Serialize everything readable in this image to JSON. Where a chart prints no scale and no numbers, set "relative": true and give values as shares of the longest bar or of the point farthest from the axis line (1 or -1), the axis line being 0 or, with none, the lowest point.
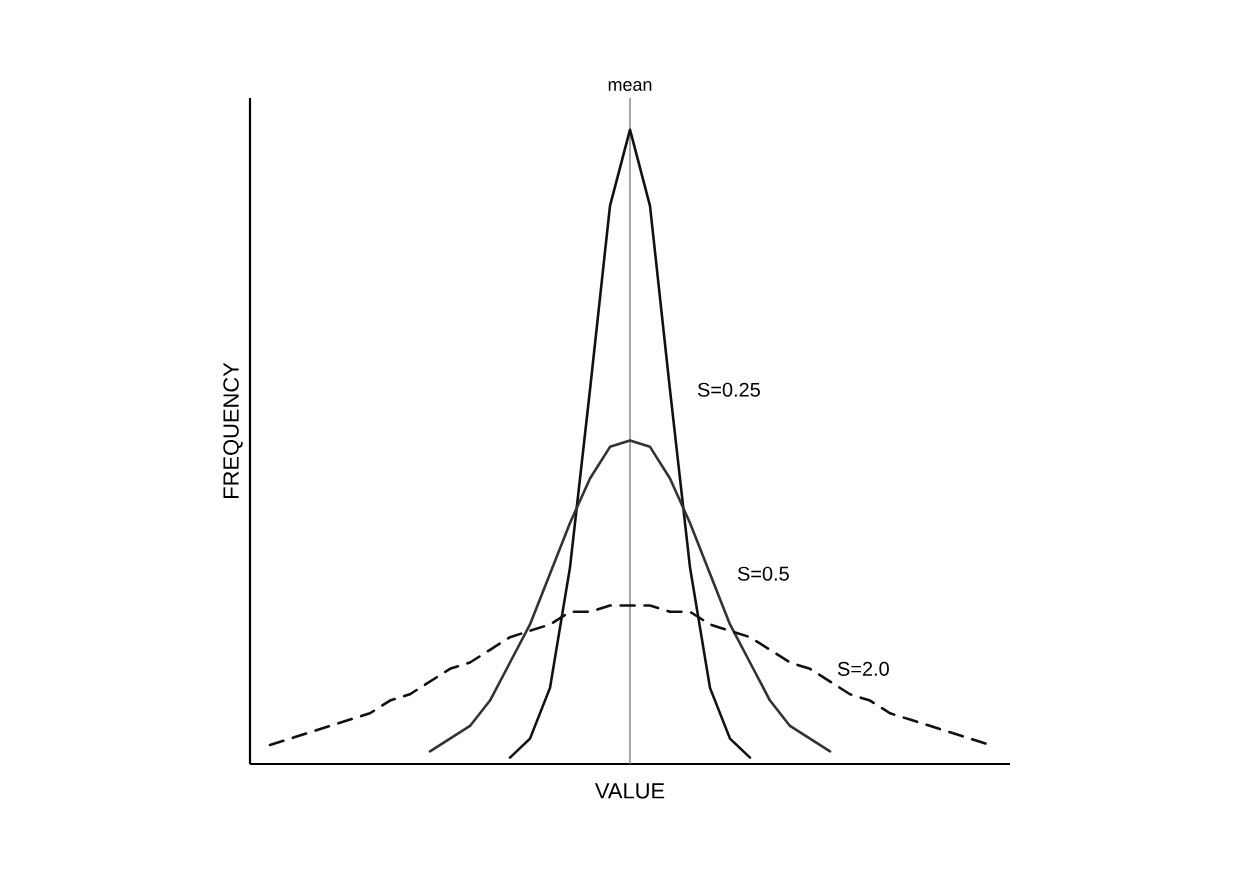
{
  "chart_data": {
    "type": "line",
    "relative": true,
    "xlabel": "VALUE",
    "ylabel": "FREQUENCY",
    "categories": [
      null,
      null,
      null,
      null,
      null,
      null,
      null,
      null,
      null,
      null,
      null,
      null,
      null,
      null,
      null,
      null,
      null,
      null,
      null,
      null,
      null,
      null,
      null,
      null,
      null,
      null,
      null,
      null,
      null,
      null,
      null,
      null,
      null,
      null,
      null,
      null,
      null
    ],
    "annotations": [
      "mean"
    ],
    "series": [
      {
        "name": "S=0.25",
        "color": "#111111",
        "line_style": "solid",
        "values": [
          null,
          null,
          null,
          null,
          null,
          null,
          null,
          null,
          null,
          null,
          null,
          null,
          0.01,
          0.04,
          0.12,
          0.31,
          0.59,
          0.88,
          1,
          0.88,
          0.59,
          0.31,
          0.12,
          0.04,
          0.01,
          null,
          null,
          null,
          null,
          null,
          null,
          null,
          null,
          null,
          null,
          null,
          null
        ]
      },
      {
        "name": "S=0.5",
        "color": "#333333",
        "line_style": "solid",
        "values": [
          null,
          null,
          null,
          null,
          null,
          null,
          null,
          null,
          0.02,
          0.04,
          0.06,
          0.1,
          0.16,
          0.22,
          0.3,
          0.38,
          0.45,
          0.5,
          0.51,
          0.5,
          0.45,
          0.38,
          0.3,
          0.22,
          0.16,
          0.1,
          0.06,
          0.04,
          0.02,
          null,
          null,
          null,
          null,
          null,
          null,
          null,
          null
        ]
      },
      {
        "name": "S=2.0",
        "color": "#111111",
        "line_style": "dashed",
        "values": [
          0.03,
          0.04,
          0.05,
          0.06,
          0.07,
          0.08,
          0.1,
          0.11,
          0.13,
          0.15,
          0.16,
          0.18,
          0.2,
          0.21,
          0.22,
          0.24,
          0.24,
          0.25,
          0.25,
          0.25,
          0.24,
          0.24,
          0.22,
          0.21,
          0.2,
          0.18,
          0.16,
          0.15,
          0.13,
          0.11,
          0.1,
          0.08,
          0.07,
          0.06,
          0.05,
          0.04,
          0.03
        ]
      }
    ]
  }
}
